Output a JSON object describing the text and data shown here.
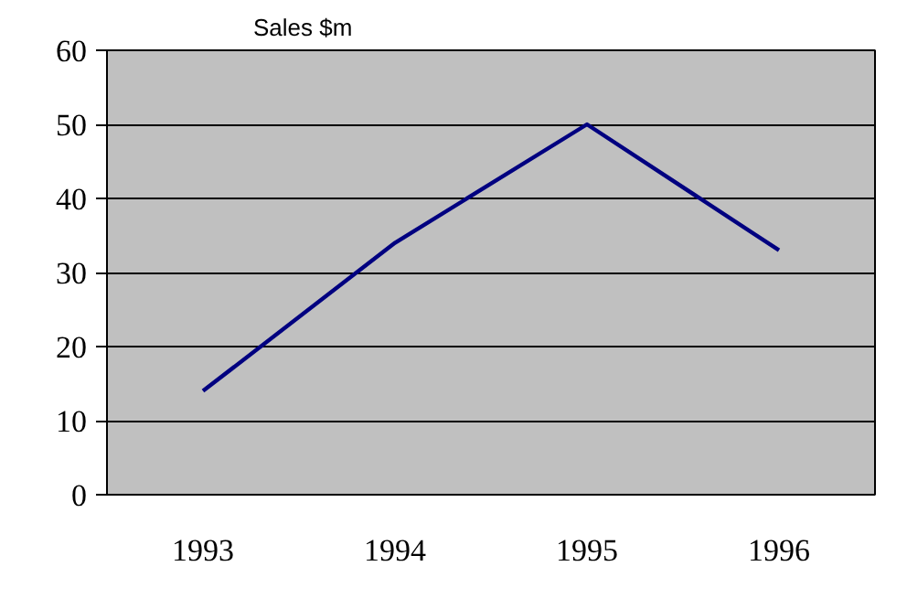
{
  "chart_data": {
    "type": "line",
    "title": "Sales $m",
    "categories": [
      "1993",
      "1994",
      "1995",
      "1996"
    ],
    "series": [
      {
        "color": "#000080",
        "values": [
          14,
          34,
          50,
          33
        ]
      }
    ],
    "ylim": [
      0,
      60
    ],
    "yticks": [
      0,
      10,
      20,
      30,
      40,
      50,
      60
    ],
    "grid": "y",
    "marker": "none",
    "line_style": "solid"
  }
}
